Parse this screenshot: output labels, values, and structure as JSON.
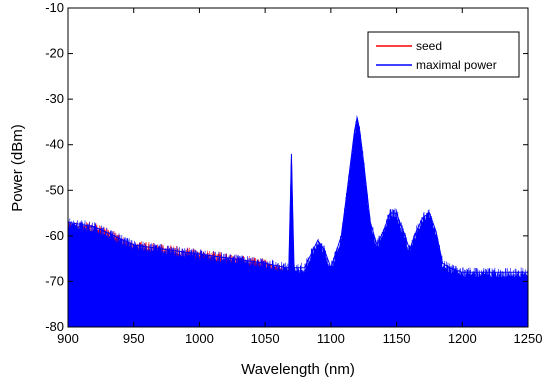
{
  "chart_data": {
    "type": "line",
    "title": "",
    "xlabel": "Wavelength (nm)",
    "ylabel": "Power (dBm)",
    "xlim": [
      900,
      1250
    ],
    "ylim": [
      -80,
      -10
    ],
    "xticks": [
      "900",
      "950",
      "1000",
      "1050",
      "1100",
      "1150",
      "1200",
      "1250"
    ],
    "yticks": [
      "-10",
      "-20",
      "-30",
      "-40",
      "-50",
      "-60",
      "-70",
      "-80"
    ],
    "grid": false,
    "legend_position": "top-right",
    "series": [
      {
        "name": "seed",
        "color": "#ff0000",
        "x": [
          900,
          920,
          950,
          1000,
          1050,
          1066,
          1068,
          1069,
          1070,
          1071,
          1072,
          1075,
          1090,
          1105,
          1110,
          1115,
          1118,
          1119,
          1120,
          1121,
          1122,
          1125,
          1140,
          1150,
          1160,
          1175,
          1185,
          1200,
          1250
        ],
        "y": [
          -58,
          -58,
          -62,
          -64,
          -66,
          -68,
          -70,
          -58,
          -43,
          -58,
          -70,
          -70,
          -70,
          -70,
          -70,
          -69,
          -65,
          -42,
          -40,
          -55,
          -69,
          -70,
          -70,
          -70,
          -70,
          -70,
          -72,
          -72,
          -70
        ]
      },
      {
        "name": "maximal power",
        "color": "#0000ff",
        "x": [
          900,
          920,
          950,
          1000,
          1050,
          1066,
          1068,
          1069,
          1070,
          1071,
          1072,
          1080,
          1090,
          1095,
          1100,
          1108,
          1112,
          1115,
          1118,
          1120,
          1122,
          1125,
          1130,
          1135,
          1140,
          1145,
          1150,
          1155,
          1160,
          1165,
          1170,
          1175,
          1180,
          1185,
          1190,
          1200,
          1250
        ],
        "y": [
          -57,
          -58,
          -62,
          -64,
          -66,
          -67,
          -67,
          -55,
          -42,
          -55,
          -67,
          -67,
          -61,
          -63,
          -67,
          -60,
          -51,
          -44,
          -37,
          -34,
          -37,
          -44,
          -57,
          -62,
          -59,
          -55,
          -55,
          -59,
          -63,
          -59,
          -56,
          -55,
          -59,
          -66,
          -67,
          -68,
          -68
        ]
      }
    ]
  }
}
